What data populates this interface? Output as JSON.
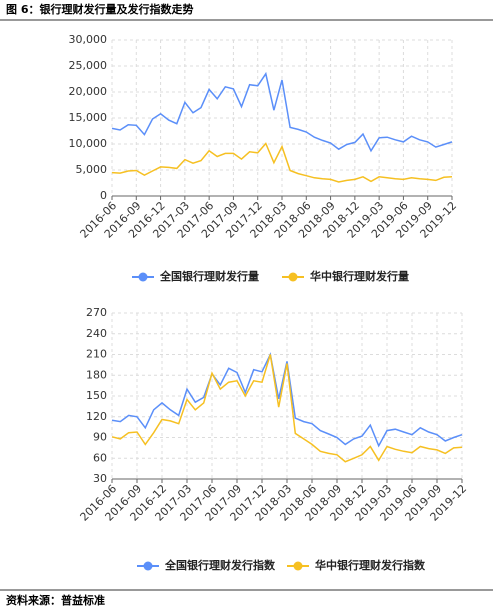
{
  "title": "图 6：银行理财发行量及发行指数走势",
  "source": "资料来源：普益标准",
  "chart_data": [
    {
      "type": "line",
      "categories": [
        "2016-06",
        null,
        null,
        "2016-09",
        null,
        null,
        "2016-12",
        null,
        null,
        "2017-03",
        null,
        null,
        "2017-06",
        null,
        null,
        "2017-09",
        null,
        null,
        "2017-12",
        null,
        null,
        "2018-03",
        null,
        null,
        "2018-06",
        null,
        null,
        "2018-09",
        null,
        null,
        "2018-12",
        null,
        null,
        "2019-03",
        null,
        null,
        "2019-06",
        null,
        null,
        "2019-09",
        null,
        null,
        "2019-12"
      ],
      "series": [
        {
          "name": "全国银行理财发行量",
          "color": "#5b8ff9",
          "values": [
            13000,
            12700,
            13700,
            13600,
            11800,
            14800,
            15800,
            14600,
            13900,
            18000,
            16000,
            17000,
            20500,
            18700,
            21000,
            20600,
            17200,
            21400,
            21200,
            23500,
            16500,
            22300,
            13200,
            12800,
            12300,
            11300,
            10700,
            10200,
            9000,
            9900,
            10300,
            11900,
            8700,
            11200,
            11300,
            10800,
            10400,
            11500,
            10800,
            10400,
            9400,
            9900,
            10400
          ]
        },
        {
          "name": "华中银行理财发行量",
          "color": "#f6c022",
          "values": [
            4500,
            4400,
            4800,
            4900,
            4000,
            4800,
            5600,
            5500,
            5300,
            7000,
            6300,
            6800,
            8700,
            7600,
            8200,
            8200,
            7100,
            8500,
            8300,
            10100,
            6400,
            9500,
            4900,
            4300,
            3900,
            3500,
            3300,
            3200,
            2700,
            3000,
            3200,
            3700,
            2800,
            3700,
            3500,
            3300,
            3200,
            3500,
            3300,
            3200,
            3000,
            3600,
            3700
          ]
        }
      ],
      "ylim": [
        0,
        30000
      ],
      "yticks": [
        0,
        {
          "value": 5000,
          "label": "5,000"
        },
        {
          "value": 10000,
          "label": "10,000"
        },
        {
          "value": 15000,
          "label": "15,000"
        },
        {
          "value": 20000,
          "label": "20,000"
        },
        {
          "value": 25000,
          "label": "25,000"
        },
        {
          "value": 30000,
          "label": "30,000"
        }
      ],
      "grid": true,
      "legend": "bottom"
    },
    {
      "type": "line",
      "categories": [
        "2016-06",
        null,
        null,
        "2016-09",
        null,
        null,
        "2016-12",
        null,
        null,
        "2017-03",
        null,
        null,
        "2017-06",
        null,
        null,
        "2017-09",
        null,
        null,
        "2017-12",
        null,
        null,
        "2018-03",
        null,
        null,
        "2018-06",
        null,
        null,
        "2018-09",
        null,
        null,
        "2018-12",
        null,
        null,
        "2019-03",
        null,
        null,
        "2019-06",
        null,
        null,
        "2019-09",
        null,
        null,
        "2019-12"
      ],
      "series": [
        {
          "name": "全国银行理财发行指数",
          "color": "#5b8ff9",
          "values": [
            115,
            113,
            122,
            120,
            104,
            130,
            140,
            130,
            122,
            160,
            141,
            148,
            182,
            166,
            190,
            184,
            155,
            188,
            185,
            210,
            146,
            200,
            118,
            113,
            110,
            100,
            95,
            90,
            80,
            88,
            92,
            108,
            78,
            100,
            102,
            98,
            94,
            104,
            98,
            94,
            85,
            90,
            94
          ]
        },
        {
          "name": "华中银行理财发行指数",
          "color": "#f6c022",
          "values": [
            91,
            88,
            97,
            98,
            80,
            97,
            116,
            114,
            110,
            145,
            130,
            140,
            183,
            160,
            170,
            172,
            150,
            172,
            170,
            210,
            134,
            197,
            96,
            88,
            80,
            70,
            67,
            65,
            55,
            60,
            65,
            77,
            57,
            77,
            73,
            70,
            68,
            77,
            74,
            72,
            67,
            75,
            76
          ]
        }
      ],
      "ylim": [
        30,
        270
      ],
      "yticks": [
        30,
        60,
        90,
        120,
        150,
        180,
        210,
        240,
        270
      ],
      "grid": true,
      "legend": "bottom"
    }
  ]
}
